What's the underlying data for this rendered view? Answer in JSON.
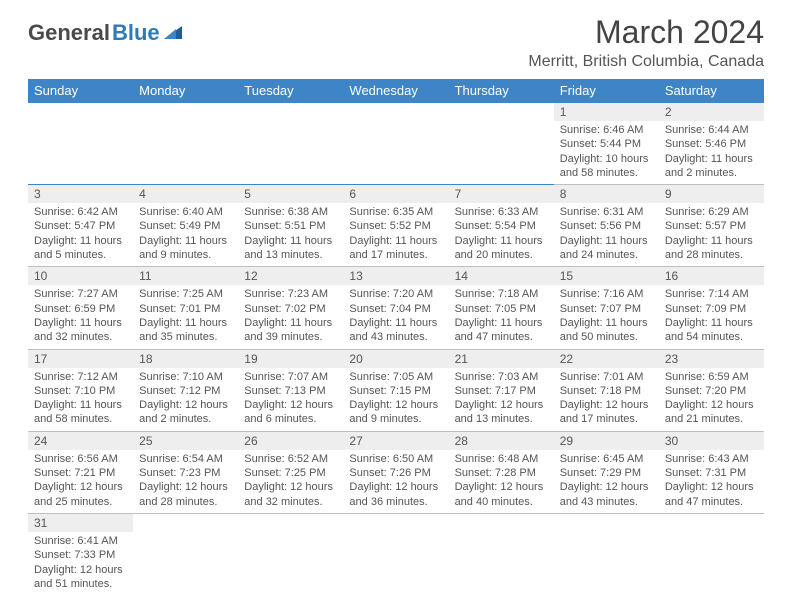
{
  "logo": {
    "word_a": "General",
    "word_b": "Blue"
  },
  "header": {
    "month": "March 2024",
    "location": "Merritt, British Columbia, Canada"
  },
  "colors": {
    "header_bg": "#3d85c6",
    "header_fg": "#ffffff",
    "daynum_bg": "#eeeeee",
    "row_divider": "#3d85c6",
    "text": "#555555",
    "logo_gray": "#4a4a4a",
    "logo_blue": "#2f7ab8"
  },
  "daynames": [
    "Sunday",
    "Monday",
    "Tuesday",
    "Wednesday",
    "Thursday",
    "Friday",
    "Saturday"
  ],
  "weeks": [
    [
      null,
      null,
      null,
      null,
      null,
      {
        "d": "1",
        "sr": "Sunrise: 6:46 AM",
        "ss": "Sunset: 5:44 PM",
        "dl1": "Daylight: 10 hours",
        "dl2": "and 58 minutes."
      },
      {
        "d": "2",
        "sr": "Sunrise: 6:44 AM",
        "ss": "Sunset: 5:46 PM",
        "dl1": "Daylight: 11 hours",
        "dl2": "and 2 minutes."
      }
    ],
    [
      {
        "d": "3",
        "sr": "Sunrise: 6:42 AM",
        "ss": "Sunset: 5:47 PM",
        "dl1": "Daylight: 11 hours",
        "dl2": "and 5 minutes."
      },
      {
        "d": "4",
        "sr": "Sunrise: 6:40 AM",
        "ss": "Sunset: 5:49 PM",
        "dl1": "Daylight: 11 hours",
        "dl2": "and 9 minutes."
      },
      {
        "d": "5",
        "sr": "Sunrise: 6:38 AM",
        "ss": "Sunset: 5:51 PM",
        "dl1": "Daylight: 11 hours",
        "dl2": "and 13 minutes."
      },
      {
        "d": "6",
        "sr": "Sunrise: 6:35 AM",
        "ss": "Sunset: 5:52 PM",
        "dl1": "Daylight: 11 hours",
        "dl2": "and 17 minutes."
      },
      {
        "d": "7",
        "sr": "Sunrise: 6:33 AM",
        "ss": "Sunset: 5:54 PM",
        "dl1": "Daylight: 11 hours",
        "dl2": "and 20 minutes."
      },
      {
        "d": "8",
        "sr": "Sunrise: 6:31 AM",
        "ss": "Sunset: 5:56 PM",
        "dl1": "Daylight: 11 hours",
        "dl2": "and 24 minutes."
      },
      {
        "d": "9",
        "sr": "Sunrise: 6:29 AM",
        "ss": "Sunset: 5:57 PM",
        "dl1": "Daylight: 11 hours",
        "dl2": "and 28 minutes."
      }
    ],
    [
      {
        "d": "10",
        "sr": "Sunrise: 7:27 AM",
        "ss": "Sunset: 6:59 PM",
        "dl1": "Daylight: 11 hours",
        "dl2": "and 32 minutes."
      },
      {
        "d": "11",
        "sr": "Sunrise: 7:25 AM",
        "ss": "Sunset: 7:01 PM",
        "dl1": "Daylight: 11 hours",
        "dl2": "and 35 minutes."
      },
      {
        "d": "12",
        "sr": "Sunrise: 7:23 AM",
        "ss": "Sunset: 7:02 PM",
        "dl1": "Daylight: 11 hours",
        "dl2": "and 39 minutes."
      },
      {
        "d": "13",
        "sr": "Sunrise: 7:20 AM",
        "ss": "Sunset: 7:04 PM",
        "dl1": "Daylight: 11 hours",
        "dl2": "and 43 minutes."
      },
      {
        "d": "14",
        "sr": "Sunrise: 7:18 AM",
        "ss": "Sunset: 7:05 PM",
        "dl1": "Daylight: 11 hours",
        "dl2": "and 47 minutes."
      },
      {
        "d": "15",
        "sr": "Sunrise: 7:16 AM",
        "ss": "Sunset: 7:07 PM",
        "dl1": "Daylight: 11 hours",
        "dl2": "and 50 minutes."
      },
      {
        "d": "16",
        "sr": "Sunrise: 7:14 AM",
        "ss": "Sunset: 7:09 PM",
        "dl1": "Daylight: 11 hours",
        "dl2": "and 54 minutes."
      }
    ],
    [
      {
        "d": "17",
        "sr": "Sunrise: 7:12 AM",
        "ss": "Sunset: 7:10 PM",
        "dl1": "Daylight: 11 hours",
        "dl2": "and 58 minutes."
      },
      {
        "d": "18",
        "sr": "Sunrise: 7:10 AM",
        "ss": "Sunset: 7:12 PM",
        "dl1": "Daylight: 12 hours",
        "dl2": "and 2 minutes."
      },
      {
        "d": "19",
        "sr": "Sunrise: 7:07 AM",
        "ss": "Sunset: 7:13 PM",
        "dl1": "Daylight: 12 hours",
        "dl2": "and 6 minutes."
      },
      {
        "d": "20",
        "sr": "Sunrise: 7:05 AM",
        "ss": "Sunset: 7:15 PM",
        "dl1": "Daylight: 12 hours",
        "dl2": "and 9 minutes."
      },
      {
        "d": "21",
        "sr": "Sunrise: 7:03 AM",
        "ss": "Sunset: 7:17 PM",
        "dl1": "Daylight: 12 hours",
        "dl2": "and 13 minutes."
      },
      {
        "d": "22",
        "sr": "Sunrise: 7:01 AM",
        "ss": "Sunset: 7:18 PM",
        "dl1": "Daylight: 12 hours",
        "dl2": "and 17 minutes."
      },
      {
        "d": "23",
        "sr": "Sunrise: 6:59 AM",
        "ss": "Sunset: 7:20 PM",
        "dl1": "Daylight: 12 hours",
        "dl2": "and 21 minutes."
      }
    ],
    [
      {
        "d": "24",
        "sr": "Sunrise: 6:56 AM",
        "ss": "Sunset: 7:21 PM",
        "dl1": "Daylight: 12 hours",
        "dl2": "and 25 minutes."
      },
      {
        "d": "25",
        "sr": "Sunrise: 6:54 AM",
        "ss": "Sunset: 7:23 PM",
        "dl1": "Daylight: 12 hours",
        "dl2": "and 28 minutes."
      },
      {
        "d": "26",
        "sr": "Sunrise: 6:52 AM",
        "ss": "Sunset: 7:25 PM",
        "dl1": "Daylight: 12 hours",
        "dl2": "and 32 minutes."
      },
      {
        "d": "27",
        "sr": "Sunrise: 6:50 AM",
        "ss": "Sunset: 7:26 PM",
        "dl1": "Daylight: 12 hours",
        "dl2": "and 36 minutes."
      },
      {
        "d": "28",
        "sr": "Sunrise: 6:48 AM",
        "ss": "Sunset: 7:28 PM",
        "dl1": "Daylight: 12 hours",
        "dl2": "and 40 minutes."
      },
      {
        "d": "29",
        "sr": "Sunrise: 6:45 AM",
        "ss": "Sunset: 7:29 PM",
        "dl1": "Daylight: 12 hours",
        "dl2": "and 43 minutes."
      },
      {
        "d": "30",
        "sr": "Sunrise: 6:43 AM",
        "ss": "Sunset: 7:31 PM",
        "dl1": "Daylight: 12 hours",
        "dl2": "and 47 minutes."
      }
    ],
    [
      {
        "d": "31",
        "sr": "Sunrise: 6:41 AM",
        "ss": "Sunset: 7:33 PM",
        "dl1": "Daylight: 12 hours",
        "dl2": "and 51 minutes."
      },
      null,
      null,
      null,
      null,
      null,
      null
    ]
  ]
}
